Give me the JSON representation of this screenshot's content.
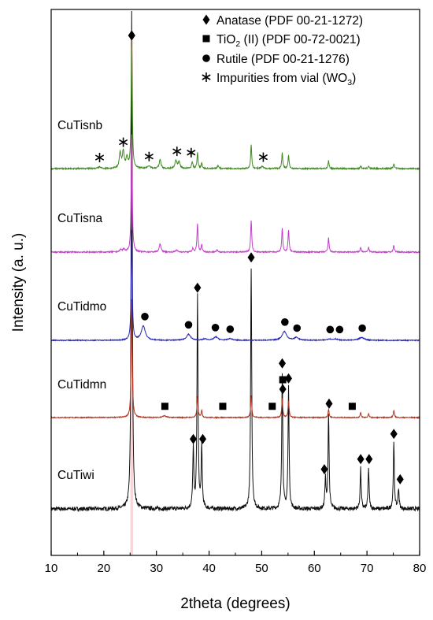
{
  "chart_data": {
    "type": "line",
    "xlabel": "2theta (degrees)",
    "ylabel": "Intensity (a. u.)",
    "xlim": [
      10,
      80
    ],
    "x_ticks": [
      10,
      20,
      30,
      40,
      50,
      60,
      70,
      80
    ],
    "grid": false,
    "legend": {
      "placement": "top-right",
      "entries": [
        {
          "marker": "diamond",
          "text": "Anatase (PDF 00-21-1272)"
        },
        {
          "marker": "square",
          "text_main": "TiO",
          "text_sub": "2",
          "text_rest": " (II) (PDF 00-72-0021)"
        },
        {
          "marker": "circle",
          "text": "Rutile (PDF 00-21-1276)"
        },
        {
          "marker": "star",
          "text_main": "Impurities from vial (WO",
          "text_sub": "3",
          "text_rest": ")"
        }
      ]
    },
    "series": [
      {
        "name": "CuTiwi",
        "color": "#111111",
        "baseline": 0.0,
        "noise": 0.004,
        "peaks": [
          [
            25.3,
            1.0,
            0.12
          ],
          [
            37.0,
            0.12,
            0.12
          ],
          [
            37.8,
            0.42,
            0.12
          ],
          [
            38.6,
            0.12,
            0.12
          ],
          [
            48.0,
            0.48,
            0.12
          ],
          [
            53.9,
            0.27,
            0.12
          ],
          [
            55.1,
            0.24,
            0.12
          ],
          [
            62.1,
            0.06,
            0.12
          ],
          [
            62.7,
            0.19,
            0.12
          ],
          [
            68.8,
            0.08,
            0.12
          ],
          [
            70.3,
            0.08,
            0.12
          ],
          [
            75.1,
            0.13,
            0.12
          ],
          [
            76.0,
            0.04,
            0.12
          ]
        ],
        "markers": [
          {
            "type": "diamond",
            "x": 25.3,
            "y": 1.0
          },
          {
            "type": "diamond",
            "x": 37.0,
            "y": 0.12
          },
          {
            "type": "diamond",
            "x": 37.8,
            "y": 0.42
          },
          {
            "type": "diamond",
            "x": 38.8,
            "y": 0.12
          },
          {
            "type": "diamond",
            "x": 48.0,
            "y": 0.48
          },
          {
            "type": "diamond",
            "x": 53.9,
            "y": 0.27
          },
          {
            "type": "diamond",
            "x": 55.1,
            "y": 0.24
          },
          {
            "type": "diamond",
            "x": 61.9,
            "y": 0.06
          },
          {
            "type": "diamond",
            "x": 62.8,
            "y": 0.19
          },
          {
            "type": "diamond",
            "x": 68.8,
            "y": 0.08
          },
          {
            "type": "diamond",
            "x": 70.4,
            "y": 0.08
          },
          {
            "type": "diamond",
            "x": 75.1,
            "y": 0.13
          },
          {
            "type": "diamond",
            "x": 76.3,
            "y": 0.04
          }
        ]
      },
      {
        "name": "CuTidmn",
        "color": "#b5321e",
        "baseline": 0.0,
        "noise": 0.004,
        "peaks": [
          [
            25.3,
            1.0,
            0.12
          ],
          [
            31.5,
            0.015,
            0.35
          ],
          [
            37.8,
            0.18,
            0.12
          ],
          [
            38.6,
            0.06,
            0.12
          ],
          [
            48.0,
            0.19,
            0.12
          ],
          [
            53.9,
            0.16,
            0.12
          ],
          [
            55.1,
            0.14,
            0.12
          ],
          [
            62.7,
            0.07,
            0.12
          ],
          [
            68.8,
            0.04,
            0.12
          ],
          [
            70.3,
            0.03,
            0.12
          ],
          [
            75.1,
            0.06,
            0.12
          ]
        ],
        "markers": [
          {
            "type": "square",
            "x": 31.6,
            "y": 0.015
          },
          {
            "type": "square",
            "x": 42.6,
            "y": 0.015
          },
          {
            "type": "square",
            "x": 52.0,
            "y": 0.015
          },
          {
            "type": "diamond",
            "x": 54.0,
            "y": 0.16
          },
          {
            "type": "square",
            "x": 54.0,
            "y": 0.24
          },
          {
            "type": "square",
            "x": 67.2,
            "y": 0.015
          }
        ]
      },
      {
        "name": "CuTidmo",
        "color": "#2323b4",
        "baseline": 0.0,
        "noise": 0.004,
        "peaks": [
          [
            25.3,
            1.0,
            0.12
          ],
          [
            27.5,
            0.13,
            0.45
          ],
          [
            36.1,
            0.055,
            0.45
          ],
          [
            39.2,
            0.012,
            0.45
          ],
          [
            41.3,
            0.03,
            0.45
          ],
          [
            44.0,
            0.015,
            0.45
          ],
          [
            54.3,
            0.08,
            0.5
          ],
          [
            56.6,
            0.025,
            0.45
          ],
          [
            62.8,
            0.012,
            0.45
          ],
          [
            64.0,
            0.012,
            0.45
          ],
          [
            69.0,
            0.025,
            0.6
          ]
        ],
        "markers": [
          {
            "type": "circle",
            "x": 27.8,
            "y": 0.13
          },
          {
            "type": "circle",
            "x": 36.1,
            "y": 0.055
          },
          {
            "type": "circle",
            "x": 41.2,
            "y": 0.03
          },
          {
            "type": "circle",
            "x": 44.0,
            "y": 0.015
          },
          {
            "type": "circle",
            "x": 54.4,
            "y": 0.08
          },
          {
            "type": "circle",
            "x": 56.7,
            "y": 0.025
          },
          {
            "type": "circle",
            "x": 63.0,
            "y": 0.012
          },
          {
            "type": "circle",
            "x": 64.8,
            "y": 0.012
          },
          {
            "type": "circle",
            "x": 69.1,
            "y": 0.025
          }
        ]
      },
      {
        "name": "CuTisna",
        "color": "#c040c8",
        "baseline": 0.0,
        "noise": 0.005,
        "peaks": [
          [
            23.2,
            0.02,
            0.2
          ],
          [
            23.8,
            0.025,
            0.2
          ],
          [
            25.3,
            1.0,
            0.12
          ],
          [
            30.7,
            0.07,
            0.2
          ],
          [
            33.8,
            0.015,
            0.25
          ],
          [
            36.9,
            0.03,
            0.15
          ],
          [
            37.8,
            0.24,
            0.12
          ],
          [
            38.6,
            0.06,
            0.12
          ],
          [
            41.5,
            0.015,
            0.2
          ],
          [
            48.0,
            0.27,
            0.12
          ],
          [
            53.9,
            0.2,
            0.12
          ],
          [
            55.1,
            0.19,
            0.12
          ],
          [
            62.7,
            0.12,
            0.12
          ],
          [
            68.8,
            0.04,
            0.12
          ],
          [
            70.3,
            0.04,
            0.12
          ],
          [
            75.1,
            0.06,
            0.12
          ]
        ],
        "markers": []
      },
      {
        "name": "CuTisnb",
        "color": "#3f8a22",
        "baseline": 0.0,
        "noise": 0.005,
        "peaks": [
          [
            19.2,
            0.012,
            0.3
          ],
          [
            23.1,
            0.12,
            0.2
          ],
          [
            23.7,
            0.13,
            0.2
          ],
          [
            24.4,
            0.08,
            0.2
          ],
          [
            25.3,
            1.0,
            0.12
          ],
          [
            28.6,
            0.02,
            0.3
          ],
          [
            30.7,
            0.07,
            0.2
          ],
          [
            33.7,
            0.06,
            0.22
          ],
          [
            34.3,
            0.05,
            0.22
          ],
          [
            36.8,
            0.05,
            0.15
          ],
          [
            37.8,
            0.12,
            0.12
          ],
          [
            38.6,
            0.04,
            0.12
          ],
          [
            41.7,
            0.02,
            0.2
          ],
          [
            48.0,
            0.18,
            0.12
          ],
          [
            50.1,
            0.015,
            0.25
          ],
          [
            53.9,
            0.12,
            0.12
          ],
          [
            55.1,
            0.1,
            0.12
          ],
          [
            62.7,
            0.06,
            0.12
          ],
          [
            68.8,
            0.02,
            0.12
          ],
          [
            70.3,
            0.02,
            0.12
          ],
          [
            75.1,
            0.04,
            0.12
          ]
        ],
        "markers": [
          {
            "type": "diamond",
            "x": 25.3,
            "y": 1.0
          },
          {
            "type": "star",
            "x": 19.2,
            "y": 0.012
          },
          {
            "type": "star",
            "x": 23.7,
            "y": 0.13
          },
          {
            "type": "star",
            "x": 28.6,
            "y": 0.02
          },
          {
            "type": "star",
            "x": 33.9,
            "y": 0.06
          },
          {
            "type": "star",
            "x": 36.6,
            "y": 0.05
          },
          {
            "type": "star",
            "x": 50.3,
            "y": 0.015
          }
        ]
      }
    ],
    "colors": {
      "CuTiwi": "#111111",
      "CuTidmn": "#b5321e",
      "CuTidmo": "#2323b4",
      "CuTisna": "#c040c8",
      "CuTisnb": "#3f8a22",
      "highlight": "#f4c4c4"
    }
  }
}
